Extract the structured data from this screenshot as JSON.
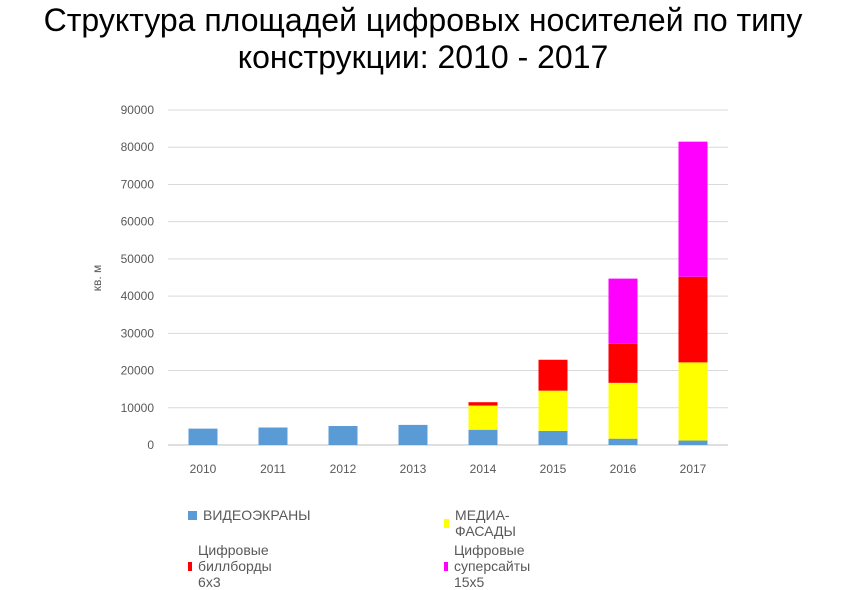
{
  "chart_data": {
    "type": "bar",
    "stacked": true,
    "title_line1": "Структура площадей цифровых носителей по типу",
    "title_line2": "конструкции: 2010 - 2017",
    "ylabel": "кв. м",
    "xlabel": "",
    "ylim": [
      0,
      90000
    ],
    "yticks": [
      "0",
      "10000",
      "20000",
      "30000",
      "40000",
      "50000",
      "60000",
      "70000",
      "80000",
      "90000"
    ],
    "grid": true,
    "legend_position": "bottom",
    "categories": [
      "2010",
      "2011",
      "2012",
      "2013",
      "2014",
      "2015",
      "2016",
      "2017"
    ],
    "series": [
      {
        "name": "ВИДЕОЭКРАНЫ",
        "color": "#5b9bd5",
        "values": [
          4400,
          4700,
          5100,
          5400,
          4100,
          3800,
          1700,
          1200
        ]
      },
      {
        "name": "МЕДИА-ФАСАДЫ",
        "color": "#ffff00",
        "values": [
          0,
          0,
          0,
          0,
          6500,
          10800,
          15000,
          21000
        ]
      },
      {
        "name": "Цифровые биллборды 6х3",
        "color": "#ff0000",
        "values": [
          0,
          0,
          0,
          0,
          900,
          8300,
          10500,
          23000
        ]
      },
      {
        "name": "Цифровые суперсайты 15х5",
        "color": "#ff00ff",
        "values": [
          0,
          0,
          0,
          0,
          0,
          0,
          17500,
          36300
        ]
      }
    ]
  }
}
